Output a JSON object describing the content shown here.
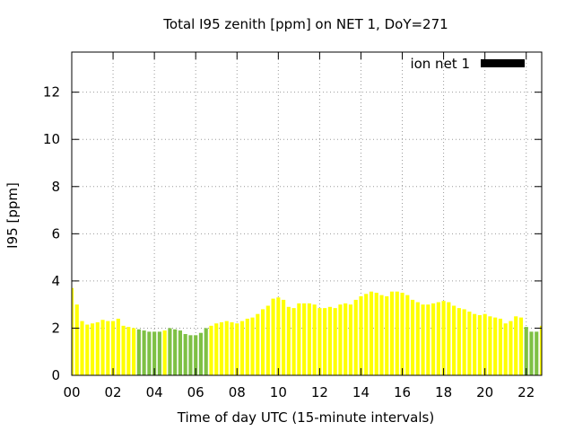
{
  "chart_data": {
    "type": "bar",
    "title": "Total I95 zenith [ppm] on NET 1, DoY=271",
    "xlabel": "Time of day UTC (15-minute intervals)",
    "ylabel": "I95 [ppm]",
    "legend": {
      "label": "ion net 1",
      "color": "#000000",
      "placement": "top-right"
    },
    "grid": true,
    "xlim": [
      0,
      22.75
    ],
    "ylim": [
      0,
      13.7
    ],
    "x_ticks": [
      0,
      2,
      4,
      6,
      8,
      10,
      12,
      14,
      16,
      18,
      20,
      22
    ],
    "x_tick_labels": [
      "00",
      "02",
      "04",
      "06",
      "08",
      "10",
      "12",
      "14",
      "16",
      "18",
      "20",
      "22"
    ],
    "y_ticks": [
      0,
      2,
      4,
      6,
      8,
      10,
      12
    ],
    "y_tick_labels": [
      "0",
      "2",
      "4",
      "6",
      "8",
      "10",
      "12"
    ],
    "bar_step_hours": 0.25,
    "colors": {
      "yellow": "#ffff00",
      "green": "#7ec044"
    },
    "values": [
      3.7,
      3.0,
      2.3,
      2.15,
      2.2,
      2.25,
      2.35,
      2.3,
      2.3,
      2.4,
      2.1,
      2.05,
      2.0,
      1.95,
      1.9,
      1.85,
      1.85,
      1.85,
      1.9,
      2.0,
      1.95,
      1.9,
      1.75,
      1.7,
      1.7,
      1.8,
      2.0,
      2.1,
      2.2,
      2.25,
      2.3,
      2.25,
      2.2,
      2.3,
      2.4,
      2.45,
      2.6,
      2.8,
      2.95,
      3.25,
      3.3,
      3.2,
      2.9,
      2.85,
      3.05,
      3.05,
      3.05,
      3.0,
      2.85,
      2.85,
      2.9,
      2.85,
      3.0,
      3.05,
      3.0,
      3.2,
      3.35,
      3.45,
      3.55,
      3.5,
      3.4,
      3.35,
      3.55,
      3.55,
      3.5,
      3.4,
      3.2,
      3.1,
      3.0,
      3.0,
      3.05,
      3.1,
      3.15,
      3.1,
      2.95,
      2.85,
      2.8,
      2.7,
      2.6,
      2.55,
      2.6,
      2.5,
      2.45,
      2.4,
      2.2,
      2.3,
      2.5,
      2.45,
      2.05,
      1.85,
      1.85,
      2.1
    ],
    "bar_colors": [
      "yellow",
      "yellow",
      "yellow",
      "yellow",
      "yellow",
      "yellow",
      "yellow",
      "yellow",
      "yellow",
      "yellow",
      "yellow",
      "yellow",
      "yellow",
      "green",
      "green",
      "green",
      "green",
      "green",
      "yellow",
      "green",
      "green",
      "green",
      "green",
      "green",
      "green",
      "green",
      "green",
      "yellow",
      "yellow",
      "yellow",
      "yellow",
      "yellow",
      "yellow",
      "yellow",
      "yellow",
      "yellow",
      "yellow",
      "yellow",
      "yellow",
      "yellow",
      "yellow",
      "yellow",
      "yellow",
      "yellow",
      "yellow",
      "yellow",
      "yellow",
      "yellow",
      "yellow",
      "yellow",
      "yellow",
      "yellow",
      "yellow",
      "yellow",
      "yellow",
      "yellow",
      "yellow",
      "yellow",
      "yellow",
      "yellow",
      "yellow",
      "yellow",
      "yellow",
      "yellow",
      "yellow",
      "yellow",
      "yellow",
      "yellow",
      "yellow",
      "yellow",
      "yellow",
      "yellow",
      "yellow",
      "yellow",
      "yellow",
      "yellow",
      "yellow",
      "yellow",
      "yellow",
      "yellow",
      "yellow",
      "yellow",
      "yellow",
      "yellow",
      "yellow",
      "yellow",
      "yellow",
      "yellow",
      "green",
      "green",
      "green",
      "yellow"
    ]
  }
}
